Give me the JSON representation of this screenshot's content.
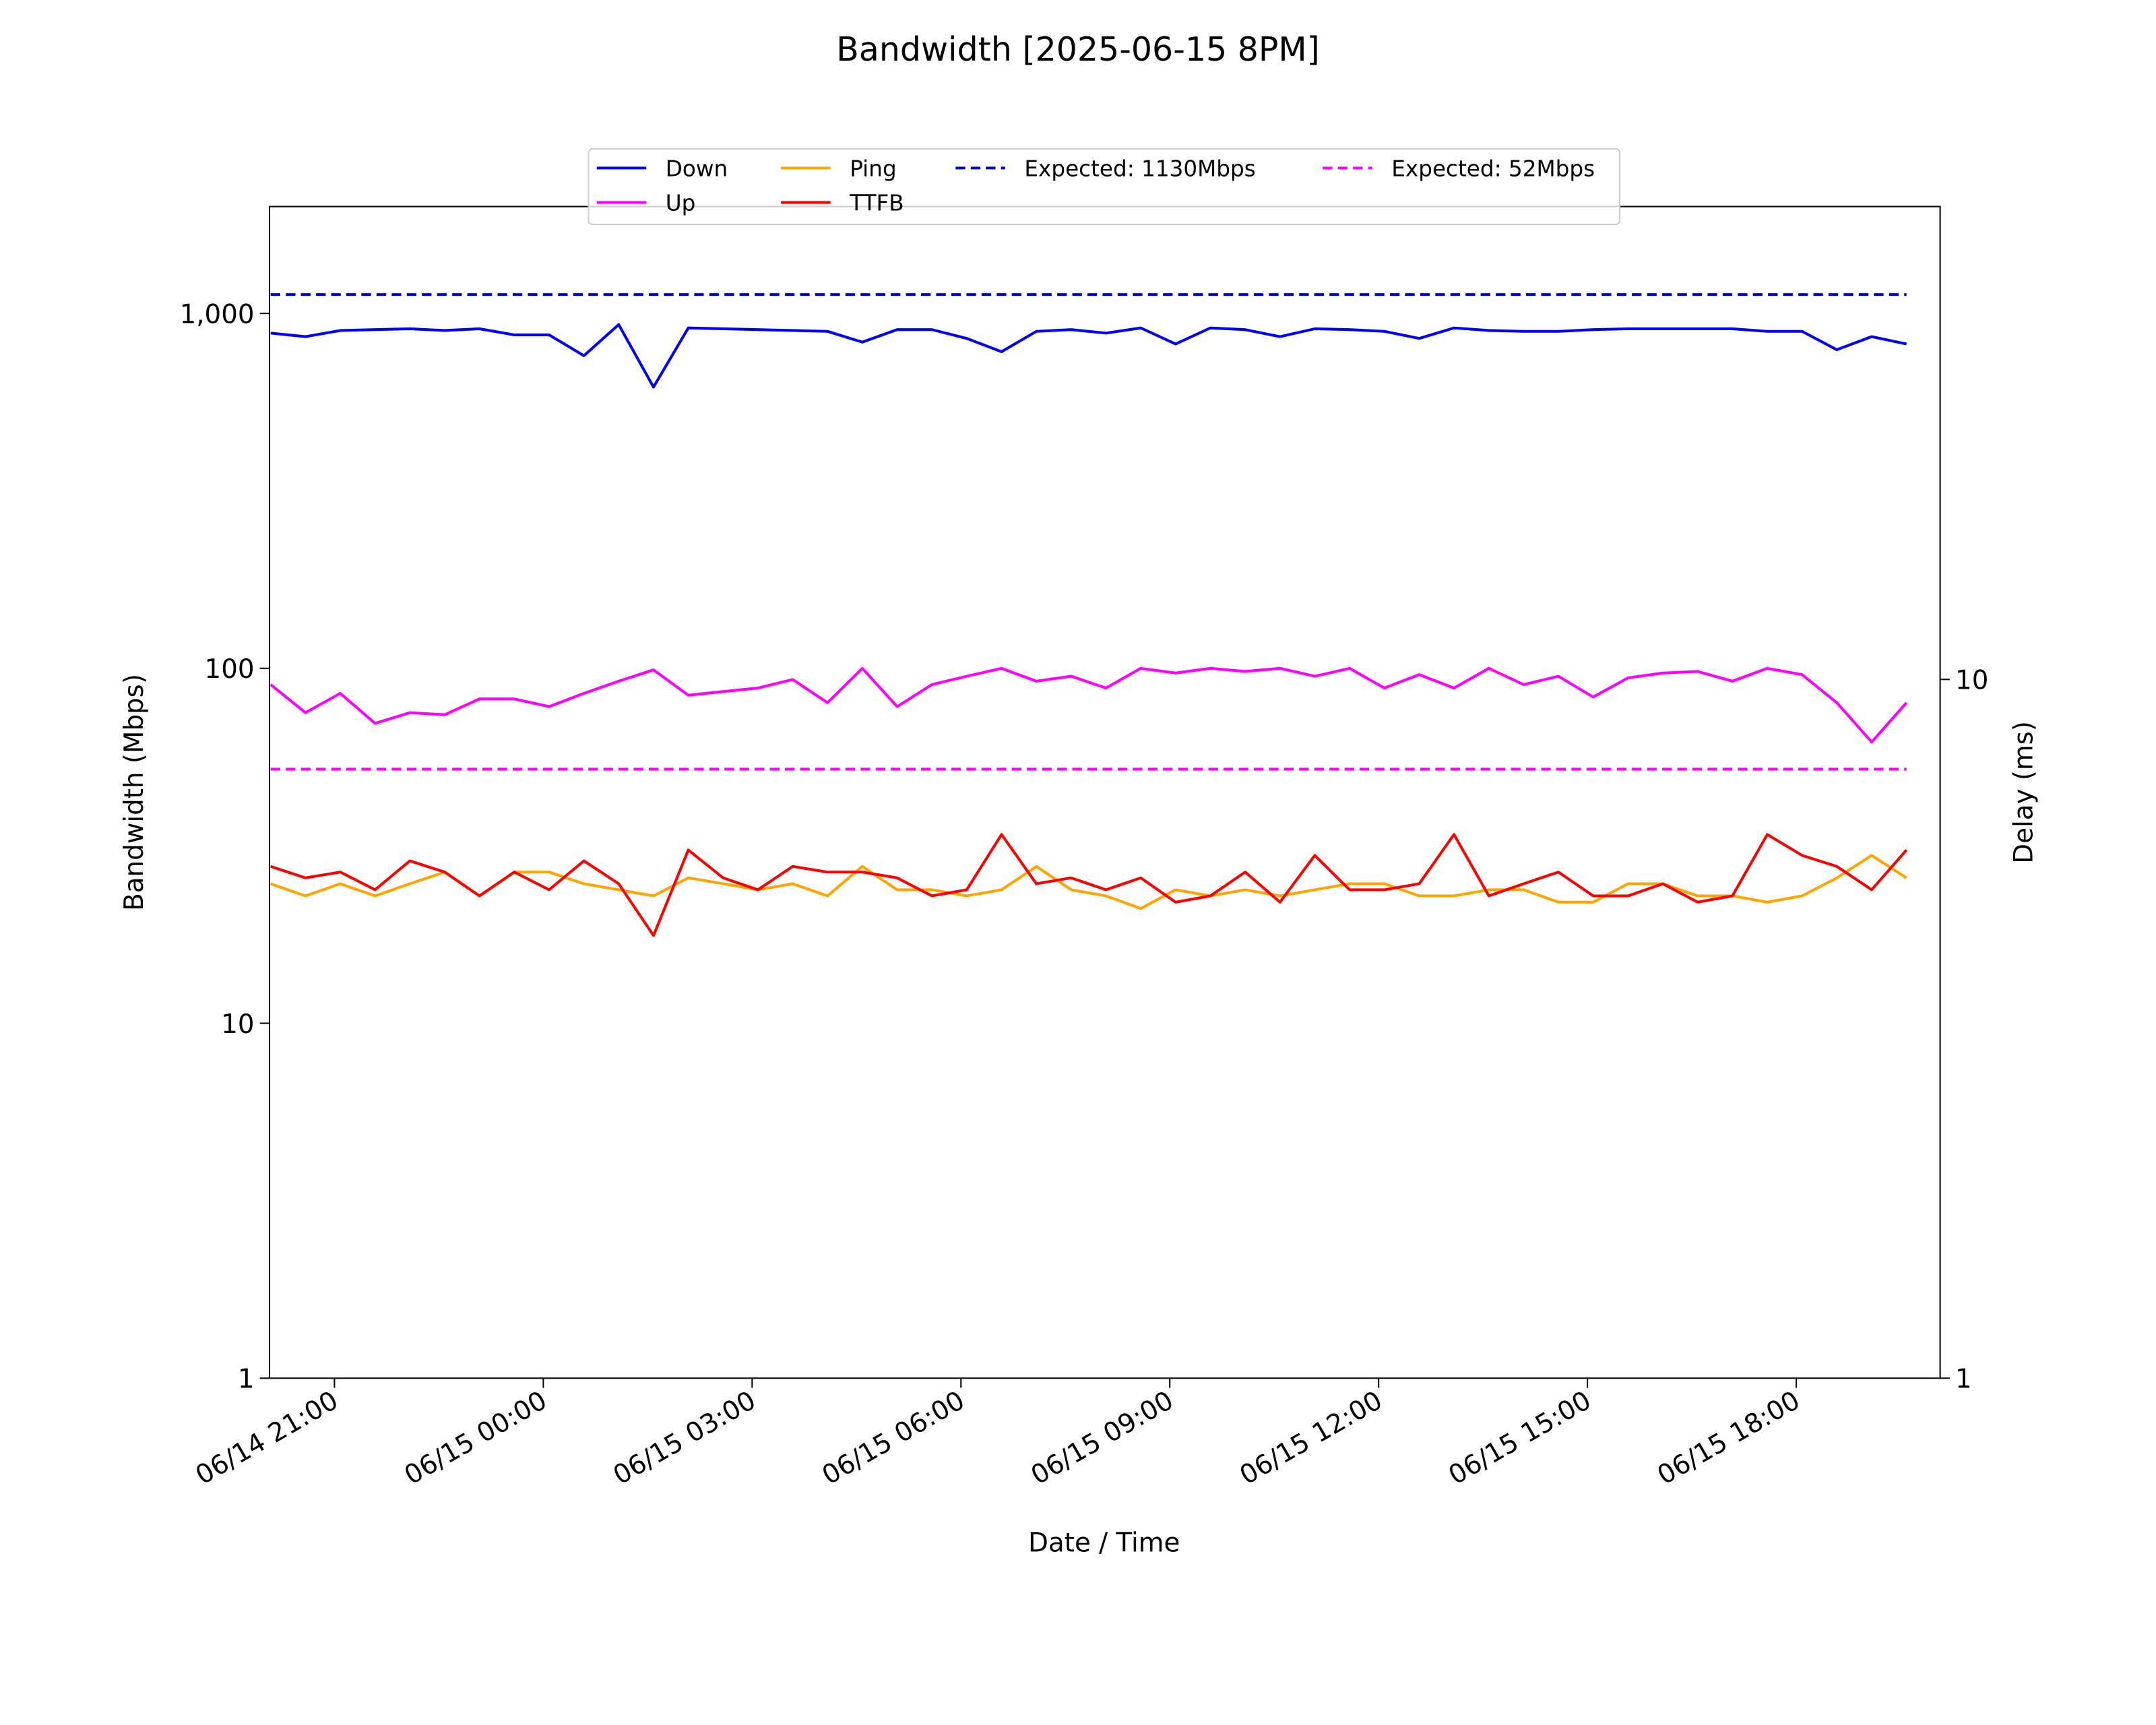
{
  "chart_data": {
    "type": "line",
    "title": "Bandwidth [2025-06-15 8PM]",
    "xlabel": "Date / Time",
    "ylabel": "Bandwidth (Mbps)",
    "y2label": "Delay (ms)",
    "x": [
      "06/14 20:05",
      "06/14 20:35",
      "06/14 21:05",
      "06/14 21:35",
      "06/14 22:05",
      "06/14 22:35",
      "06/14 23:05",
      "06/14 23:35",
      "06/15 00:05",
      "06/15 00:35",
      "06/15 01:05",
      "06/15 01:35",
      "06/15 02:05",
      "06/15 02:35",
      "06/15 03:05",
      "06/15 03:35",
      "06/15 04:05",
      "06/15 04:35",
      "06/15 05:05",
      "06/15 05:35",
      "06/15 06:05",
      "06/15 06:35",
      "06/15 07:05",
      "06/15 07:35",
      "06/15 08:05",
      "06/15 08:35",
      "06/15 09:05",
      "06/15 09:35",
      "06/15 10:05",
      "06/15 10:35",
      "06/15 11:05",
      "06/15 11:35",
      "06/15 12:05",
      "06/15 12:35",
      "06/15 13:05",
      "06/15 13:35",
      "06/15 14:05",
      "06/15 14:35",
      "06/15 15:05",
      "06/15 15:35",
      "06/15 16:05",
      "06/15 16:35",
      "06/15 17:05",
      "06/15 17:35",
      "06/15 18:05",
      "06/15 18:35",
      "06/15 19:05",
      "06/15 19:35"
    ],
    "xlim": [
      "06/14 20:04",
      "06/15 20:04"
    ],
    "xticks": [
      "06/14 21:00",
      "06/15 00:00",
      "06/15 03:00",
      "06/15 06:00",
      "06/15 09:00",
      "06/15 12:00",
      "06/15 15:00",
      "06/15 18:00"
    ],
    "yscale": "log",
    "ylim": [
      1,
      2000
    ],
    "yticks": [
      1,
      10,
      100,
      {
        "value": 1000,
        "label": "1,000"
      }
    ],
    "y2scale": "log",
    "y2lim": [
      1,
      47.5
    ],
    "y2ticks": [
      1,
      10
    ],
    "series": [
      {
        "name": "Down",
        "color": "#0000ff",
        "values": [
          880,
          860,
          895,
          900,
          905,
          895,
          905,
          870,
          870,
          760,
          930,
          620,
          910,
          905,
          900,
          895,
          890,
          830,
          900,
          900,
          850,
          780,
          890,
          900,
          880,
          910,
          820,
          910,
          900,
          860,
          905,
          900,
          890,
          850,
          910,
          895,
          890,
          890,
          900,
          905,
          905,
          905,
          905,
          890,
          890,
          790,
          860,
          820
        ]
      },
      {
        "name": "Up",
        "color": "#ff00ff",
        "values": [
          90,
          75,
          85,
          70,
          75,
          74,
          82,
          82,
          78,
          85,
          92,
          99,
          84,
          86,
          88,
          93,
          80,
          100,
          78,
          90,
          95,
          100,
          92,
          95,
          88,
          100,
          97,
          100,
          98,
          100,
          95,
          100,
          88,
          96,
          88,
          100,
          90,
          95,
          83,
          94,
          97,
          98,
          92,
          100,
          96,
          80,
          62,
          80
        ]
      },
      {
        "name": "Ping",
        "color": "#ffa500",
        "axis": "y2",
        "values": [
          5.1,
          4.9,
          5.1,
          4.9,
          5.1,
          5.3,
          4.9,
          5.3,
          5.3,
          5.1,
          5.0,
          4.9,
          5.2,
          5.1,
          5.0,
          5.1,
          4.9,
          5.4,
          5.0,
          5.0,
          4.9,
          5.0,
          5.4,
          5.0,
          4.9,
          4.7,
          5.0,
          4.9,
          5.0,
          4.9,
          5.0,
          5.1,
          5.1,
          4.9,
          4.9,
          5.0,
          5.0,
          4.8,
          4.8,
          5.1,
          5.1,
          4.9,
          4.9,
          4.8,
          4.9,
          5.2,
          5.6,
          5.2
        ]
      },
      {
        "name": "TTFB",
        "color": "#ff0000",
        "axis": "y2",
        "values": [
          5.4,
          5.2,
          5.3,
          5.0,
          5.5,
          5.3,
          4.9,
          5.3,
          5.0,
          5.5,
          5.1,
          4.3,
          5.7,
          5.2,
          5.0,
          5.4,
          5.3,
          5.3,
          5.2,
          4.9,
          5.0,
          6.0,
          5.1,
          5.2,
          5.0,
          5.2,
          4.8,
          4.9,
          5.3,
          4.8,
          5.6,
          5.0,
          5.0,
          5.1,
          6.0,
          4.9,
          5.1,
          5.3,
          4.9,
          4.9,
          5.1,
          4.8,
          4.9,
          6.0,
          5.6,
          5.4,
          5.0,
          5.7
        ]
      }
    ],
    "hlines": [
      {
        "name": "Expected: 1130Mbps",
        "value": 1130,
        "color": "#0000cc",
        "linestyle": "dashed"
      },
      {
        "name": "Expected: 52Mbps",
        "value": 52,
        "color": "#ff00ff",
        "linestyle": "dashed"
      }
    ],
    "legend": "top"
  }
}
